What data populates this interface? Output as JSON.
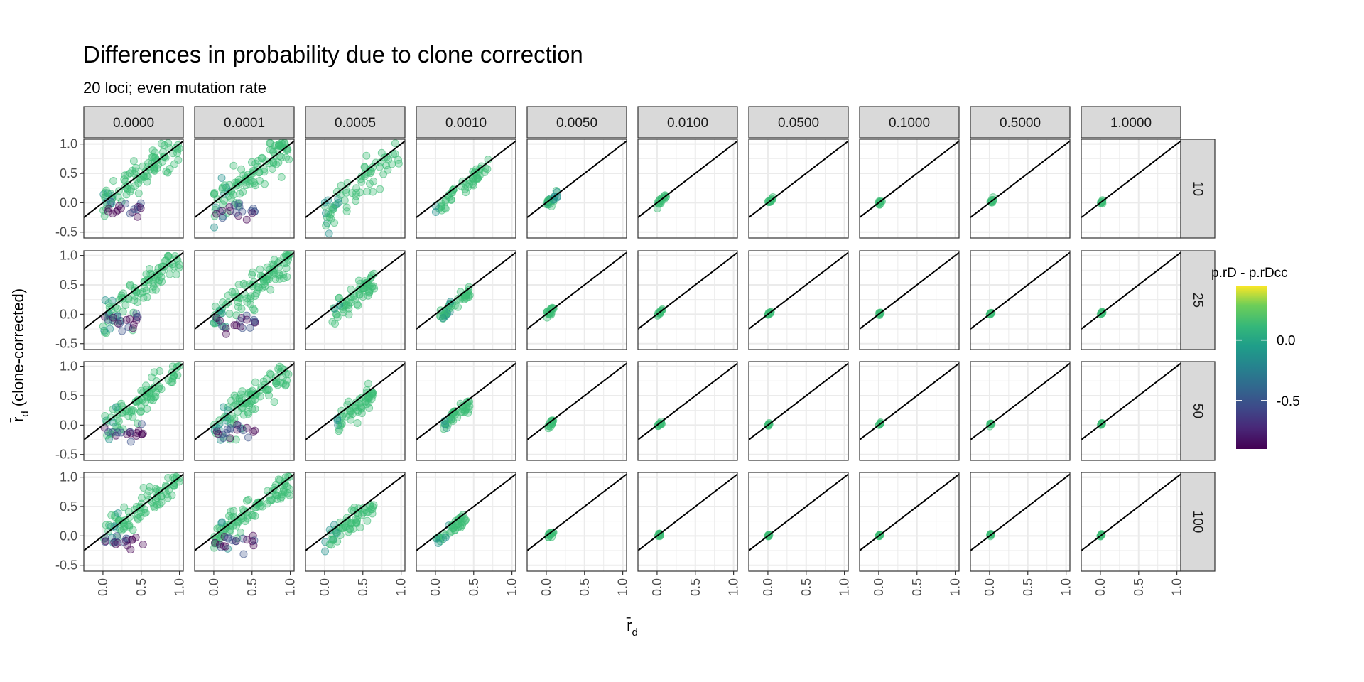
{
  "chart_data": {
    "type": "scatter",
    "title": "Differences in probability due to clone correction",
    "subtitle": "20 loci; even mutation rate",
    "xlabel": "r̄",
    "xlabel_sub": "d",
    "ylabel": "r̄",
    "ylabel_sub": "d",
    "ylabel_suffix": " (clone-corrected)",
    "xlim": [
      -0.25,
      1.05
    ],
    "ylim": [
      -0.6,
      1.08
    ],
    "x_ticks": [
      0.0,
      0.5,
      1.0
    ],
    "x_tick_labels": [
      "0.0",
      "0.5",
      "1.0"
    ],
    "y_ticks": [
      -0.5,
      0.0,
      0.5,
      1.0
    ],
    "y_tick_labels": [
      "-0.5",
      "0.0",
      "0.5",
      "1.0"
    ],
    "grid": true,
    "reference_line": {
      "intercept": 0,
      "slope": 1
    },
    "facet_cols": [
      "0.0000",
      "0.0001",
      "0.0005",
      "0.0010",
      "0.0050",
      "0.0100",
      "0.0500",
      "0.1000",
      "0.5000",
      "1.0000"
    ],
    "facet_rows": [
      "10",
      "25",
      "50",
      "100"
    ],
    "legend": {
      "title": "p.rD - p.rDcc",
      "position": "right",
      "type": "colorbar",
      "palette": "viridis",
      "range": [
        -0.9,
        0.45
      ],
      "ticks": [
        0.0,
        -0.5
      ],
      "tick_labels": [
        "0.0",
        "-0.5"
      ]
    },
    "panel_clouds": [
      [
        {
          "xr": [
            0.0,
            1.0
          ],
          "off": -0.05,
          "spread": 0.16,
          "n": 90,
          "purple_low": true
        },
        {
          "xr": [
            0.0,
            1.0
          ],
          "off": -0.05,
          "spread": 0.16,
          "n": 100,
          "purple_low": true
        },
        {
          "xr": [
            0.0,
            1.0
          ],
          "off": -0.2,
          "spread": 0.13,
          "n": 70,
          "purple_low": false
        },
        {
          "xr": [
            0.0,
            0.7
          ],
          "off": -0.1,
          "spread": 0.07,
          "n": 50,
          "purple_low": false
        },
        {
          "xr": [
            0.0,
            0.15
          ],
          "off": -0.02,
          "spread": 0.04,
          "n": 25,
          "purple_low": false
        },
        {
          "xr": [
            0.0,
            0.12
          ],
          "off": -0.02,
          "spread": 0.03,
          "n": 18,
          "purple_low": false
        },
        {
          "xr": [
            0.0,
            0.07
          ],
          "off": 0,
          "spread": 0.02,
          "n": 12,
          "purple_low": false
        },
        {
          "xr": [
            0.0,
            0.05
          ],
          "off": 0,
          "spread": 0.02,
          "n": 10,
          "purple_low": false
        },
        {
          "xr": [
            0.0,
            0.05
          ],
          "off": 0,
          "spread": 0.02,
          "n": 10,
          "purple_low": false
        },
        {
          "xr": [
            0.0,
            0.03
          ],
          "off": 0,
          "spread": 0.015,
          "n": 8,
          "purple_low": false
        }
      ],
      [
        {
          "xr": [
            0.0,
            1.0
          ],
          "off": -0.1,
          "spread": 0.14,
          "n": 90,
          "purple_low": true
        },
        {
          "xr": [
            0.0,
            1.0
          ],
          "off": -0.1,
          "spread": 0.14,
          "n": 100,
          "purple_low": true
        },
        {
          "xr": [
            0.1,
            0.65
          ],
          "off": -0.15,
          "spread": 0.1,
          "n": 60,
          "purple_low": false
        },
        {
          "xr": [
            0.05,
            0.45
          ],
          "off": -0.1,
          "spread": 0.06,
          "n": 45,
          "purple_low": false
        },
        {
          "xr": [
            0.0,
            0.1
          ],
          "off": -0.01,
          "spread": 0.03,
          "n": 18,
          "purple_low": false
        },
        {
          "xr": [
            0.0,
            0.07
          ],
          "off": -0.01,
          "spread": 0.02,
          "n": 14,
          "purple_low": false
        },
        {
          "xr": [
            0.0,
            0.04
          ],
          "off": 0,
          "spread": 0.015,
          "n": 10,
          "purple_low": false
        },
        {
          "xr": [
            0.0,
            0.03
          ],
          "off": 0,
          "spread": 0.01,
          "n": 8,
          "purple_low": false
        },
        {
          "xr": [
            0.0,
            0.03
          ],
          "off": 0,
          "spread": 0.01,
          "n": 8,
          "purple_low": false
        },
        {
          "xr": [
            0.0,
            0.03
          ],
          "off": 0,
          "spread": 0.01,
          "n": 8,
          "purple_low": false
        }
      ],
      [
        {
          "xr": [
            0.0,
            1.0
          ],
          "off": -0.08,
          "spread": 0.13,
          "n": 85,
          "purple_low": true
        },
        {
          "xr": [
            0.0,
            1.0
          ],
          "off": -0.08,
          "spread": 0.13,
          "n": 95,
          "purple_low": true
        },
        {
          "xr": [
            0.15,
            0.65
          ],
          "off": -0.15,
          "spread": 0.09,
          "n": 55,
          "purple_low": false
        },
        {
          "xr": [
            0.1,
            0.45
          ],
          "off": -0.1,
          "spread": 0.05,
          "n": 40,
          "purple_low": false
        },
        {
          "xr": [
            0.02,
            0.1
          ],
          "off": -0.04,
          "spread": 0.02,
          "n": 15,
          "purple_low": false
        },
        {
          "xr": [
            0.01,
            0.06
          ],
          "off": -0.02,
          "spread": 0.015,
          "n": 12,
          "purple_low": false
        },
        {
          "xr": [
            0.0,
            0.03
          ],
          "off": 0,
          "spread": 0.01,
          "n": 8,
          "purple_low": false
        },
        {
          "xr": [
            0.0,
            0.03
          ],
          "off": 0,
          "spread": 0.01,
          "n": 8,
          "purple_low": false
        },
        {
          "xr": [
            0.0,
            0.03
          ],
          "off": 0,
          "spread": 0.01,
          "n": 8,
          "purple_low": false
        },
        {
          "xr": [
            0.0,
            0.03
          ],
          "off": 0,
          "spread": 0.01,
          "n": 8,
          "purple_low": false
        }
      ],
      [
        {
          "xr": [
            0.0,
            1.0
          ],
          "off": -0.05,
          "spread": 0.12,
          "n": 85,
          "purple_low": true
        },
        {
          "xr": [
            0.0,
            1.0
          ],
          "off": -0.06,
          "spread": 0.12,
          "n": 95,
          "purple_low": true
        },
        {
          "xr": [
            0.0,
            0.65
          ],
          "off": -0.15,
          "spread": 0.08,
          "n": 60,
          "purple_low": false
        },
        {
          "xr": [
            0.0,
            0.4
          ],
          "off": -0.12,
          "spread": 0.05,
          "n": 40,
          "purple_low": false
        },
        {
          "xr": [
            0.02,
            0.1
          ],
          "off": -0.04,
          "spread": 0.015,
          "n": 14,
          "purple_low": false
        },
        {
          "xr": [
            0.01,
            0.06
          ],
          "off": -0.02,
          "spread": 0.012,
          "n": 10,
          "purple_low": false
        },
        {
          "xr": [
            0.0,
            0.02
          ],
          "off": 0,
          "spread": 0.01,
          "n": 8,
          "purple_low": false
        },
        {
          "xr": [
            0.0,
            0.02
          ],
          "off": 0,
          "spread": 0.01,
          "n": 8,
          "purple_low": false
        },
        {
          "xr": [
            0.0,
            0.02
          ],
          "off": 0,
          "spread": 0.01,
          "n": 8,
          "purple_low": false
        },
        {
          "xr": [
            0.0,
            0.02
          ],
          "off": 0,
          "spread": 0.01,
          "n": 8,
          "purple_low": false
        }
      ]
    ],
    "colors": {
      "points_main": "#3cbc75",
      "points_teal": "#21918c",
      "points_blue": "#3b528b",
      "points_purple": "#440154",
      "strip_fill": "#d9d9d9",
      "panel_border": "#333333",
      "grid": "#ebebeb",
      "ref_line": "#000000"
    }
  }
}
